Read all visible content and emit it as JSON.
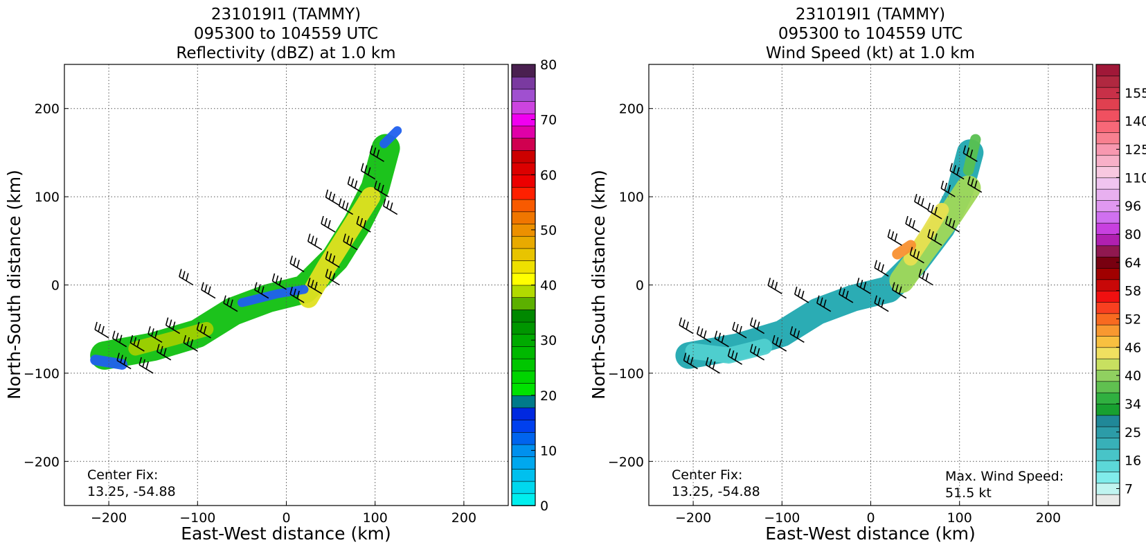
{
  "chart_data": [
    {
      "type": "heatmap",
      "title_lines": [
        "231019I1 (TAMMY)",
        "095300 to 104559 UTC",
        "Reflectivity (dBZ) at 1.0 km"
      ],
      "xlabel": "East-West distance (km)",
      "ylabel": "North-South distance (km)",
      "xlim": [
        -250,
        250
      ],
      "ylim": [
        -250,
        250
      ],
      "xticks": [
        -200,
        -100,
        0,
        100,
        200
      ],
      "yticks": [
        -200,
        -100,
        0,
        100,
        200
      ],
      "grid": true,
      "annotations": {
        "center_fix_label": "Center Fix:",
        "center_fix_value": "13.25, -54.88"
      },
      "colorbar": {
        "min": 0,
        "max": 80,
        "step": 2.5,
        "tick_values": [
          0,
          10,
          20,
          30,
          40,
          50,
          60,
          70,
          80
        ],
        "colors": [
          "#00eeee",
          "#00d8ee",
          "#00c0ee",
          "#00a8ee",
          "#0090ee",
          "#0064ee",
          "#0040ee",
          "#0028e0",
          "#007a8a",
          "#00e200",
          "#00d400",
          "#00c600",
          "#00b800",
          "#00aa00",
          "#009600",
          "#008800",
          "#5cb000",
          "#b2da00",
          "#ffff00",
          "#eee000",
          "#e8c400",
          "#e8aa00",
          "#ec9000",
          "#f07600",
          "#f85a00",
          "#ff2000",
          "#ec0000",
          "#dc0000",
          "#cc0000",
          "#d00050",
          "#e000a8",
          "#f000f0",
          "#cc44e0",
          "#a050d0",
          "#7a3aa0",
          "#4a2050"
        ]
      },
      "field_regions": [
        {
          "shape": "band",
          "points": [
            [
              -205,
              -80
            ],
            [
              -150,
              -70
            ],
            [
              -100,
              -55
            ],
            [
              -60,
              -30
            ],
            [
              -20,
              -15
            ],
            [
              20,
              -5
            ],
            [
              55,
              30
            ],
            [
              80,
              70
            ],
            [
              100,
              110
            ],
            [
              112,
              155
            ]
          ],
          "width": 32,
          "color": "#10c010"
        },
        {
          "shape": "band",
          "points": [
            [
              -170,
              -72
            ],
            [
              -125,
              -60
            ],
            [
              -90,
              -50
            ]
          ],
          "width": 16,
          "color": "#a0d000"
        },
        {
          "shape": "band",
          "points": [
            [
              25,
              -15
            ],
            [
              45,
              20
            ],
            [
              70,
              60
            ],
            [
              95,
              100
            ]
          ],
          "width": 22,
          "color": "#e0e020"
        },
        {
          "shape": "band",
          "points": [
            [
              -50,
              -20
            ],
            [
              -10,
              -10
            ],
            [
              20,
              -5
            ]
          ],
          "width": 10,
          "color": "#2060ee"
        },
        {
          "shape": "band",
          "points": [
            [
              -215,
              -85
            ],
            [
              -185,
              -90
            ]
          ],
          "width": 12,
          "color": "#2060ee"
        },
        {
          "shape": "band",
          "points": [
            [
              110,
              160
            ],
            [
              125,
              175
            ]
          ],
          "width": 10,
          "color": "#2060ee"
        }
      ],
      "wind_barbs": [
        [
          -200,
          -60
        ],
        [
          -180,
          -70
        ],
        [
          -160,
          -75
        ],
        [
          -140,
          -65
        ],
        [
          -120,
          -55
        ],
        [
          -175,
          -95
        ],
        [
          -150,
          -100
        ],
        [
          -130,
          -85
        ],
        [
          -100,
          -75
        ],
        [
          -85,
          -60
        ],
        [
          -105,
          0
        ],
        [
          -80,
          -15
        ],
        [
          -55,
          -30
        ],
        [
          -20,
          -15
        ],
        [
          0,
          -5
        ],
        [
          20,
          -20
        ],
        [
          20,
          15
        ],
        [
          40,
          40
        ],
        [
          55,
          60
        ],
        [
          60,
          90
        ],
        [
          75,
          80
        ],
        [
          85,
          105
        ],
        [
          100,
          120
        ],
        [
          110,
          140
        ],
        [
          115,
          100
        ],
        [
          125,
          80
        ],
        [
          60,
          20
        ],
        [
          80,
          40
        ],
        [
          95,
          60
        ],
        [
          40,
          -10
        ],
        [
          60,
          0
        ]
      ]
    },
    {
      "type": "heatmap",
      "title_lines": [
        "231019I1 (TAMMY)",
        "095300 to 104559 UTC",
        "Wind Speed (kt) at 1.0 km"
      ],
      "xlabel": "East-West distance (km)",
      "ylabel": "North-South distance (km)",
      "xlim": [
        -250,
        250
      ],
      "ylim": [
        -250,
        250
      ],
      "xticks": [
        -200,
        -100,
        0,
        100,
        200
      ],
      "yticks": [
        -200,
        -100,
        0,
        100,
        200
      ],
      "grid": true,
      "annotations": {
        "center_fix_label": "Center Fix:",
        "center_fix_value": "13.25, -54.88",
        "max_wind_label": "Max. Wind Speed:",
        "max_wind_value": "51.5 kt"
      },
      "colorbar": {
        "tick_labels": [
          "7",
          "16",
          "25",
          "34",
          "40",
          "46",
          "52",
          "58",
          "64",
          "80",
          "96",
          "110",
          "125",
          "140",
          "155"
        ],
        "colors": [
          "#e8eae8",
          "#c0f4f0",
          "#80eceb",
          "#5cd8d8",
          "#48c4c8",
          "#38b0b8",
          "#2c9ca8",
          "#208898",
          "#18a030",
          "#30b040",
          "#60c050",
          "#90d060",
          "#c8e060",
          "#f0e060",
          "#f8c040",
          "#f89830",
          "#f86a20",
          "#f84020",
          "#f01010",
          "#c80808",
          "#a00000",
          "#780010",
          "#901850",
          "#b020b0",
          "#c840e0",
          "#d070f0",
          "#e098f0",
          "#e8b0f0",
          "#f0c4f0",
          "#f8c8e0",
          "#f8b0c8",
          "#f898b0",
          "#f88090",
          "#f86878",
          "#f05060",
          "#e04050",
          "#c83048",
          "#b02840",
          "#a01838"
        ]
      },
      "field_regions": [
        {
          "shape": "band",
          "points": [
            [
              -205,
              -80
            ],
            [
              -150,
              -70
            ],
            [
              -100,
              -55
            ],
            [
              -60,
              -30
            ],
            [
              -20,
              -15
            ],
            [
              20,
              -5
            ],
            [
              50,
              25
            ],
            [
              80,
              65
            ],
            [
              100,
              105
            ],
            [
              112,
              150
            ]
          ],
          "width": 30,
          "color": "#20a8b0"
        },
        {
          "shape": "band",
          "points": [
            [
              -200,
              -75
            ],
            [
              -160,
              -80
            ],
            [
              -120,
              -70
            ]
          ],
          "width": 18,
          "color": "#50d0d0"
        },
        {
          "shape": "band",
          "points": [
            [
              35,
              5
            ],
            [
              60,
              40
            ],
            [
              90,
              80
            ],
            [
              110,
              110
            ]
          ],
          "width": 28,
          "color": "#a0d858"
        },
        {
          "shape": "band",
          "points": [
            [
              45,
              30
            ],
            [
              65,
              60
            ],
            [
              80,
              85
            ]
          ],
          "width": 16,
          "color": "#e8e050"
        },
        {
          "shape": "band",
          "points": [
            [
              30,
              35
            ],
            [
              45,
              45
            ]
          ],
          "width": 12,
          "color": "#f89030"
        },
        {
          "shape": "band",
          "points": [
            [
              110,
              130
            ],
            [
              118,
              165
            ]
          ],
          "width": 12,
          "color": "#58c050"
        }
      ],
      "wind_barbs": [
        [
          -200,
          -55
        ],
        [
          -180,
          -65
        ],
        [
          -160,
          -70
        ],
        [
          -140,
          -60
        ],
        [
          -120,
          -55
        ],
        [
          -195,
          -95
        ],
        [
          -170,
          -100
        ],
        [
          -145,
          -90
        ],
        [
          -120,
          -85
        ],
        [
          -95,
          -75
        ],
        [
          -75,
          -65
        ],
        [
          -100,
          -10
        ],
        [
          -70,
          -20
        ],
        [
          -45,
          -30
        ],
        [
          -20,
          -20
        ],
        [
          0,
          -10
        ],
        [
          20,
          -30
        ],
        [
          20,
          10
        ],
        [
          35,
          45
        ],
        [
          55,
          60
        ],
        [
          65,
          85
        ],
        [
          80,
          75
        ],
        [
          95,
          100
        ],
        [
          105,
          120
        ],
        [
          120,
          140
        ],
        [
          125,
          105
        ],
        [
          60,
          25
        ],
        [
          80,
          45
        ],
        [
          100,
          60
        ],
        [
          40,
          -15
        ],
        [
          70,
          0
        ]
      ]
    }
  ]
}
